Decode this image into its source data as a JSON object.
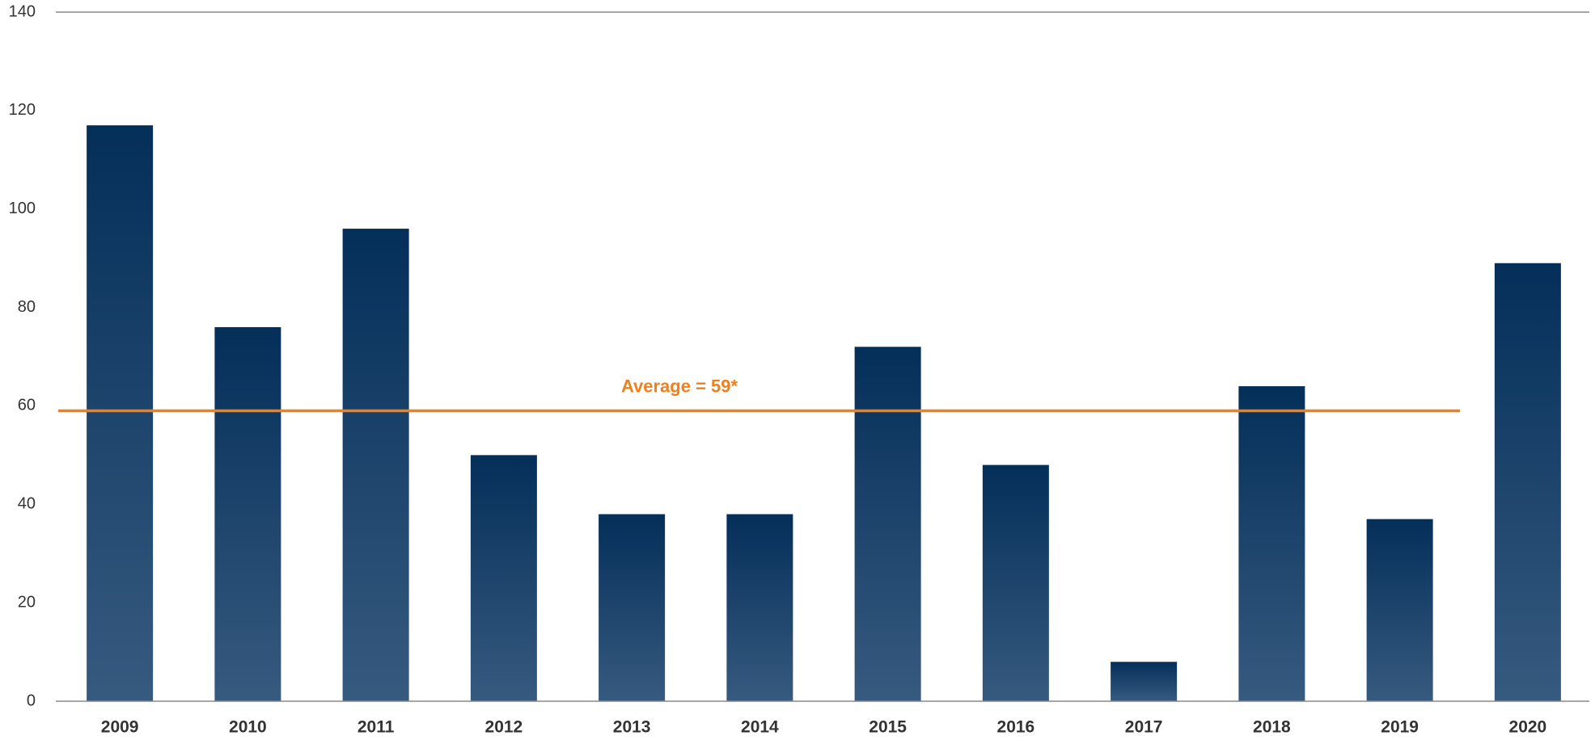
{
  "chart_data": {
    "type": "bar",
    "categories": [
      "2009",
      "2010",
      "2011",
      "2012",
      "2013",
      "2014",
      "2015",
      "2016",
      "2017",
      "2018",
      "2019",
      "2020"
    ],
    "values": [
      117,
      76,
      96,
      50,
      38,
      38,
      72,
      48,
      8,
      64,
      37,
      89
    ],
    "gradient": [
      "#042f59",
      "#375a7f"
    ],
    "ylim": [
      0,
      140
    ],
    "yticks": [
      0,
      20,
      40,
      60,
      80,
      100,
      120,
      140
    ],
    "grid": false,
    "average": {
      "value": 59,
      "label": "Average = 59*",
      "color": "#f07f1d"
    }
  }
}
